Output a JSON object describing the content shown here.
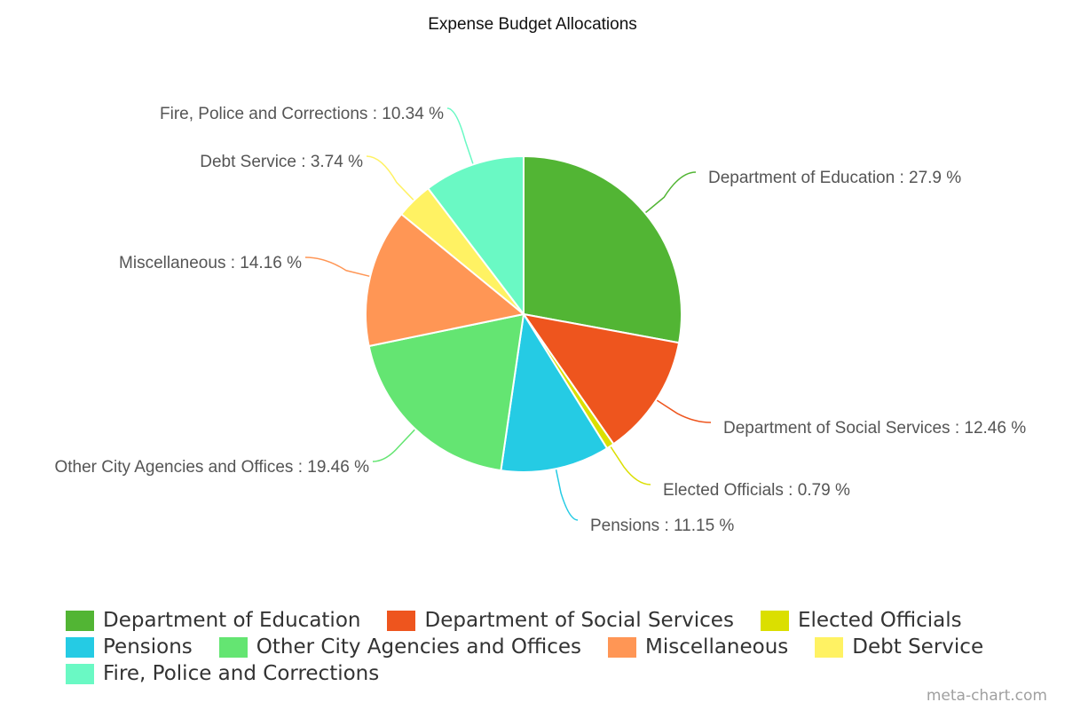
{
  "chart_data": {
    "type": "pie",
    "title": "Expense Budget Allocations",
    "label_suffix": " %",
    "slices": [
      {
        "label": "Department of Education",
        "value": 27.9,
        "display": "27.9",
        "color": "#52b534"
      },
      {
        "label": "Department of Social Services",
        "value": 12.46,
        "display": "12.46",
        "color": "#ee551e"
      },
      {
        "label": "Elected Officials",
        "value": 0.79,
        "display": "0.79",
        "color": "#dbdf00"
      },
      {
        "label": "Pensions",
        "value": 11.15,
        "display": "11.15",
        "color": "#25cbe4"
      },
      {
        "label": "Other City Agencies and Offices",
        "value": 19.46,
        "display": "19.46",
        "color": "#64e572"
      },
      {
        "label": "Miscellaneous",
        "value": 14.16,
        "display": "14.16",
        "color": "#ff9655"
      },
      {
        "label": "Debt Service",
        "value": 3.74,
        "display": "3.74",
        "color": "#fff263"
      },
      {
        "label": "Fire, Police and Corrections",
        "value": 10.34,
        "display": "10.34",
        "color": "#6af9c4"
      }
    ],
    "legend_position": "bottom"
  },
  "credit": "meta-chart.com"
}
